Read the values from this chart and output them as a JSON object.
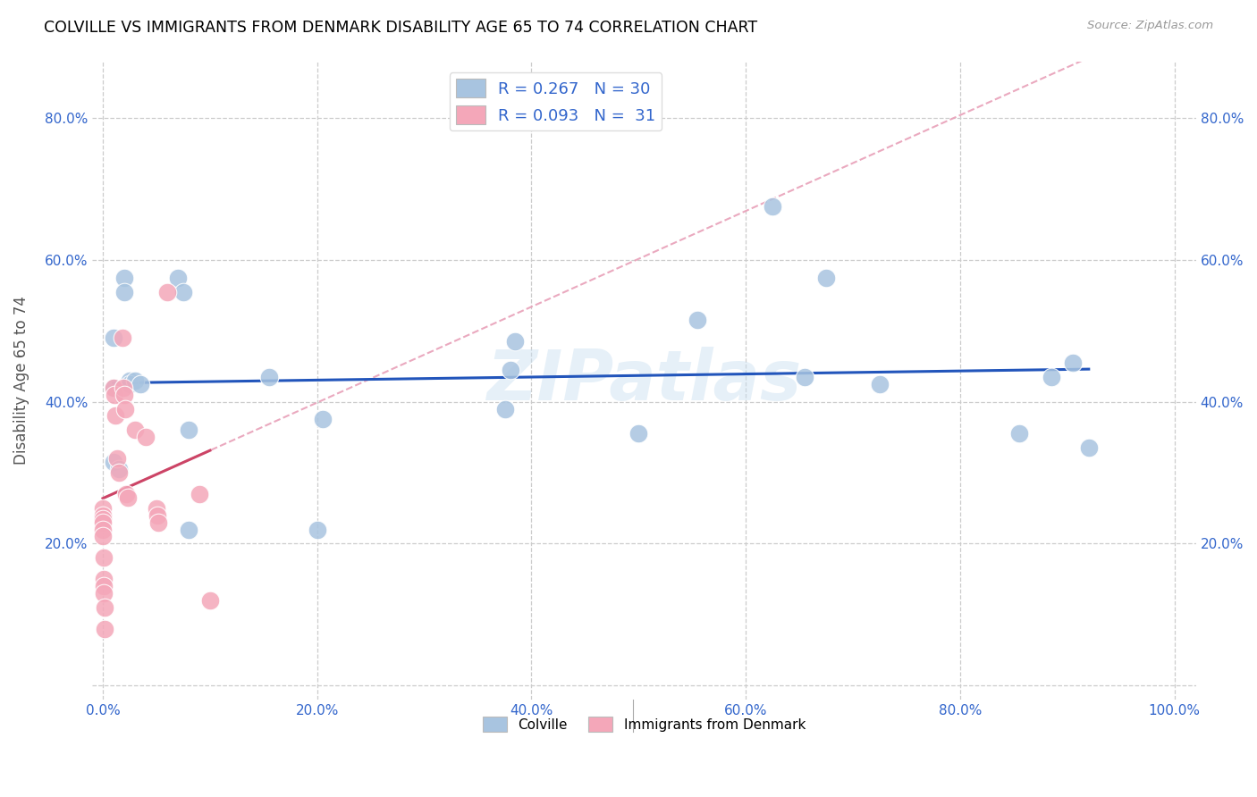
{
  "title": "COLVILLE VS IMMIGRANTS FROM DENMARK DISABILITY AGE 65 TO 74 CORRELATION CHART",
  "source": "Source: ZipAtlas.com",
  "ylabel": "Disability Age 65 to 74",
  "xlim": [
    -0.01,
    1.02
  ],
  "ylim": [
    -0.02,
    0.88
  ],
  "xtick_vals": [
    0.0,
    0.2,
    0.4,
    0.6,
    0.8,
    1.0
  ],
  "ytick_vals": [
    0.0,
    0.2,
    0.4,
    0.6,
    0.8
  ],
  "xticklabels": [
    "0.0%",
    "20.0%",
    "40.0%",
    "60.0%",
    "80.0%",
    "100.0%"
  ],
  "yticklabels": [
    "",
    "20.0%",
    "40.0%",
    "60.0%",
    "80.0%"
  ],
  "colville_R": 0.267,
  "colville_N": 30,
  "denmark_R": 0.093,
  "denmark_N": 31,
  "colville_color": "#a8c4e0",
  "denmark_color": "#f4a7b9",
  "colville_line_color": "#2255bb",
  "denmark_line_color": "#cc4466",
  "denmark_dash_color": "#e8a0b8",
  "watermark": "ZIPatlas",
  "colville_x": [
    0.01,
    0.01,
    0.01,
    0.015,
    0.02,
    0.02,
    0.025,
    0.025,
    0.03,
    0.035,
    0.07,
    0.075,
    0.08,
    0.08,
    0.155,
    0.2,
    0.205,
    0.375,
    0.38,
    0.385,
    0.5,
    0.555,
    0.625,
    0.655,
    0.675,
    0.725,
    0.855,
    0.885,
    0.905,
    0.92
  ],
  "colville_y": [
    0.49,
    0.42,
    0.315,
    0.305,
    0.575,
    0.555,
    0.43,
    0.425,
    0.43,
    0.425,
    0.575,
    0.555,
    0.36,
    0.22,
    0.435,
    0.22,
    0.375,
    0.39,
    0.445,
    0.485,
    0.355,
    0.515,
    0.675,
    0.435,
    0.575,
    0.425,
    0.355,
    0.435,
    0.455,
    0.335
  ],
  "denmark_x": [
    0.0,
    0.0,
    0.0,
    0.0,
    0.0,
    0.0,
    0.001,
    0.001,
    0.001,
    0.001,
    0.002,
    0.002,
    0.01,
    0.011,
    0.012,
    0.013,
    0.015,
    0.018,
    0.019,
    0.02,
    0.021,
    0.022,
    0.023,
    0.03,
    0.04,
    0.05,
    0.051,
    0.052,
    0.06,
    0.09,
    0.1
  ],
  "denmark_y": [
    0.25,
    0.24,
    0.235,
    0.23,
    0.22,
    0.21,
    0.18,
    0.15,
    0.14,
    0.13,
    0.11,
    0.08,
    0.42,
    0.41,
    0.38,
    0.32,
    0.3,
    0.49,
    0.42,
    0.41,
    0.39,
    0.27,
    0.265,
    0.36,
    0.35,
    0.25,
    0.24,
    0.23,
    0.555,
    0.27,
    0.12
  ]
}
